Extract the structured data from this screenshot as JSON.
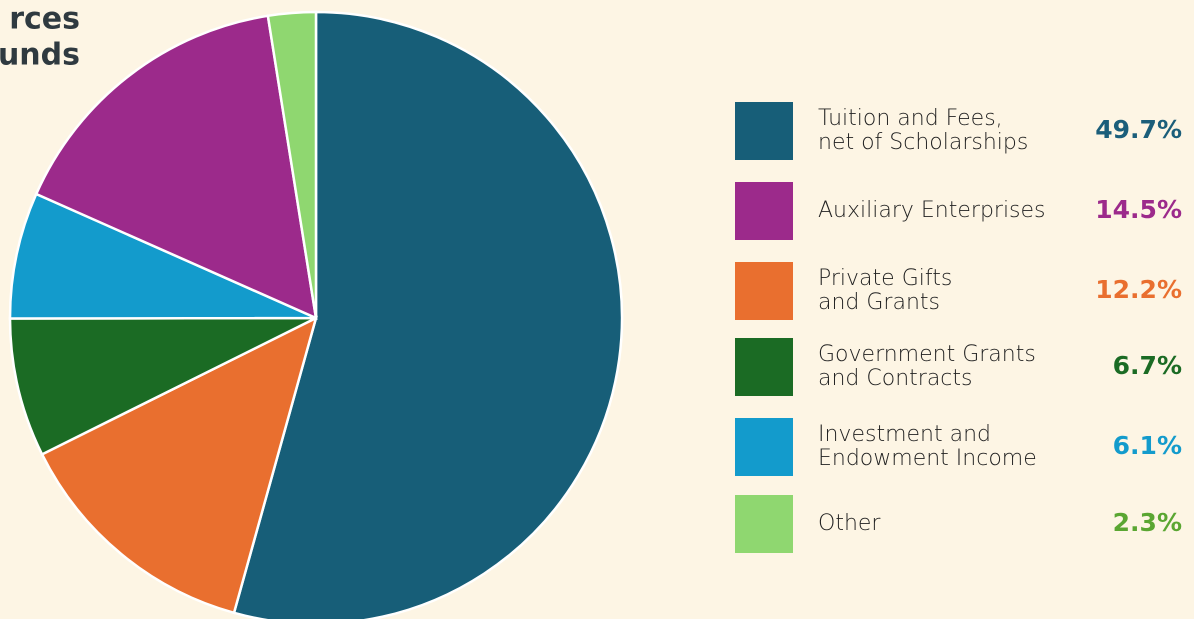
{
  "chart_data": {
    "type": "pie",
    "title_lines": [
      "rces",
      "unds"
    ],
    "categories": [
      [
        "Tuition and Fees,",
        "net of Scholarships"
      ],
      [
        "Auxiliary Enterprises"
      ],
      [
        "Private Gifts",
        "and Grants"
      ],
      [
        "Government Grants",
        "and Contracts"
      ],
      [
        "Investment and",
        "Endowment Income"
      ],
      [
        "Other"
      ]
    ],
    "values": [
      49.7,
      14.5,
      12.2,
      6.7,
      6.1,
      2.3
    ],
    "value_labels": [
      "49.7%",
      "14.5%",
      "12.2%",
      "6.7%",
      "6.1%",
      "2.3%"
    ],
    "colors": [
      "#175e78",
      "#9c2a8b",
      "#e96f2f",
      "#1b6b24",
      "#139bcc",
      "#8fd770"
    ],
    "value_colors": [
      "#1b5e7a",
      "#9c2a8b",
      "#e96f2f",
      "#1b6b24",
      "#139bcc",
      "#5aa632"
    ],
    "slice_order": [
      0,
      2,
      3,
      4,
      1,
      5
    ]
  }
}
